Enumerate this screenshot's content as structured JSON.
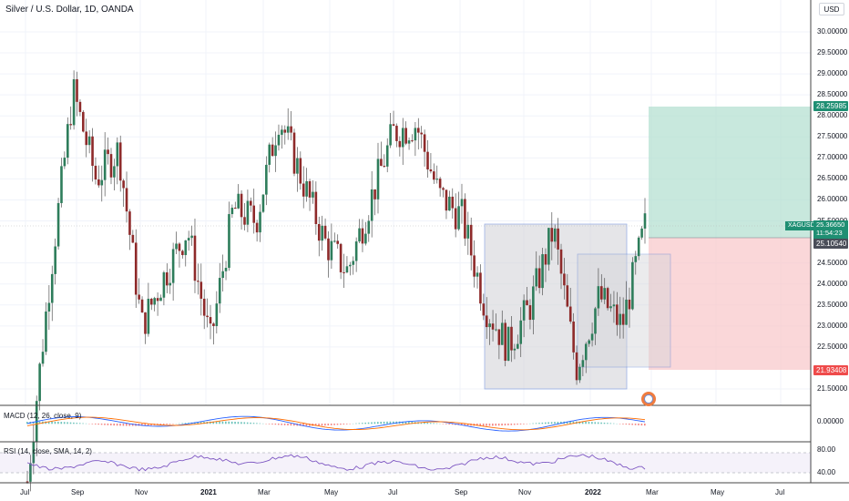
{
  "header": {
    "title": "Silver / U.S. Dollar, 1D, OANDA",
    "currency": "USD"
  },
  "colors": {
    "up": "#26a69a",
    "down": "#ef5350",
    "candle_body_up": "#2e7d5b",
    "candle_body_down": "#8e2a2a",
    "macd_line": "#2962ff",
    "signal_line": "#ff6d00",
    "rsi_line": "#7e57c2",
    "profit_zone": "#b2dfd0",
    "loss_zone": "#f8c9cc",
    "box_fill": "#d5d5d9",
    "box_border": "#5b7fd6"
  },
  "price_axis": {
    "labels": [
      "30.00000",
      "29.50000",
      "29.00000",
      "28.50000",
      "28.00000",
      "27.50000",
      "27.00000",
      "26.50000",
      "26.00000",
      "25.50000",
      "24.50000",
      "24.00000",
      "23.50000",
      "23.00000",
      "22.50000",
      "21.50000"
    ],
    "min": 21.2,
    "max": 30.3
  },
  "price_tags": {
    "target": "28.25985",
    "entry": "25.10540",
    "stop": "21.93408",
    "last_symbol": "XAGUSD",
    "last_price": "25.36650",
    "countdown": "11:54:23"
  },
  "time_axis": {
    "labels": [
      {
        "text": "Jul",
        "bold": false
      },
      {
        "text": "Sep",
        "bold": false
      },
      {
        "text": "Nov",
        "bold": false
      },
      {
        "text": "2021",
        "bold": true
      },
      {
        "text": "Mar",
        "bold": false
      },
      {
        "text": "May",
        "bold": false
      },
      {
        "text": "Jul",
        "bold": false
      },
      {
        "text": "Sep",
        "bold": false
      },
      {
        "text": "Nov",
        "bold": false
      },
      {
        "text": "2022",
        "bold": true
      },
      {
        "text": "Mar",
        "bold": false
      },
      {
        "text": "May",
        "bold": false
      },
      {
        "text": "Jul",
        "bold": false
      }
    ]
  },
  "macd": {
    "title": "MACD (12, 26, close, 9)",
    "axis_label": "0.00000"
  },
  "rsi": {
    "title": "RSI (14, close, SMA, 14, 2)",
    "axis_labels": [
      "80.00",
      "40.00"
    ]
  },
  "chart_data": {
    "type": "candlestick",
    "title": "Silver / U.S. Dollar, 1D, OANDA",
    "price_axis_range": [
      21.2,
      30.3
    ],
    "close_series_approx": [
      {
        "date": "2020-07",
        "close": 19.3
      },
      {
        "date": "2020-07-end",
        "close": 24.2
      },
      {
        "date": "2020-08-early",
        "close": 28.6
      },
      {
        "date": "2020-08-mid",
        "close": 26.5
      },
      {
        "date": "2020-09",
        "close": 27.2
      },
      {
        "date": "2020-09-end",
        "close": 23.0
      },
      {
        "date": "2020-10",
        "close": 24.2
      },
      {
        "date": "2020-11-early",
        "close": 25.3
      },
      {
        "date": "2020-11-end",
        "close": 22.6
      },
      {
        "date": "2020-12",
        "close": 25.8
      },
      {
        "date": "2021-01",
        "close": 25.5
      },
      {
        "date": "2021-02-early",
        "close": 28.0
      },
      {
        "date": "2021-02-end",
        "close": 26.5
      },
      {
        "date": "2021-03",
        "close": 25.0
      },
      {
        "date": "2021-03-end",
        "close": 24.3
      },
      {
        "date": "2021-04",
        "close": 26.0
      },
      {
        "date": "2021-05",
        "close": 27.6
      },
      {
        "date": "2021-06-early",
        "close": 27.8
      },
      {
        "date": "2021-06-end",
        "close": 26.1
      },
      {
        "date": "2021-07",
        "close": 25.6
      },
      {
        "date": "2021-08",
        "close": 23.5
      },
      {
        "date": "2021-09",
        "close": 22.5
      },
      {
        "date": "2021-10",
        "close": 23.5
      },
      {
        "date": "2021-11-mid",
        "close": 25.3
      },
      {
        "date": "2021-12",
        "close": 22.0
      },
      {
        "date": "2022-01",
        "close": 23.7
      },
      {
        "date": "2022-02",
        "close": 23.0
      },
      {
        "date": "2022-02-end",
        "close": 25.37
      }
    ],
    "long_position": {
      "target": 28.25985,
      "entry": 25.1054,
      "stop": 21.93408
    },
    "last_price": 25.3665
  }
}
